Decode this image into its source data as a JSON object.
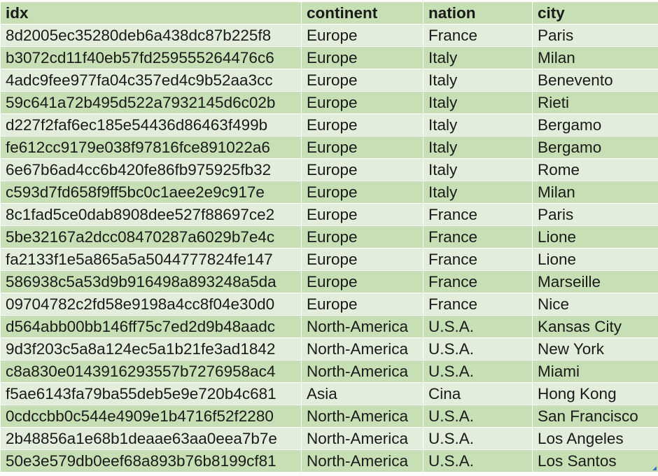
{
  "table": {
    "columns": [
      "idx",
      "continent",
      "nation",
      "city"
    ],
    "rows": [
      {
        "idx": "8d2005ec35280deb6a438dc87b225f8",
        "continent": "Europe",
        "nation": "France",
        "city": "Paris"
      },
      {
        "idx": "b3072cd11f40eb57fd259555264476c6",
        "continent": "Europe",
        "nation": "Italy",
        "city": "Milan"
      },
      {
        "idx": "4adc9fee977fa04c357ed4c9b52aa3cc",
        "continent": "Europe",
        "nation": "Italy",
        "city": "Benevento"
      },
      {
        "idx": "59c641a72b495d522a7932145d6c02b",
        "continent": "Europe",
        "nation": "Italy",
        "city": "Rieti"
      },
      {
        "idx": "d227f2faf6ec185e54436d86463f499b",
        "continent": "Europe",
        "nation": "Italy",
        "city": "Bergamo"
      },
      {
        "idx": "fe612cc9179e038f97816fce891022a6",
        "continent": "Europe",
        "nation": "Italy",
        "city": "Bergamo"
      },
      {
        "idx": "6e67b6ad4cc6b420fe86fb975925fb32",
        "continent": "Europe",
        "nation": "Italy",
        "city": "Rome"
      },
      {
        "idx": "c593d7fd658f9ff5bc0c1aee2e9c917e",
        "continent": "Europe",
        "nation": "Italy",
        "city": "Milan"
      },
      {
        "idx": "8c1fad5ce0dab8908dee527f88697ce2",
        "continent": "Europe",
        "nation": "France",
        "city": "Paris"
      },
      {
        "idx": "5be32167a2dcc08470287a6029b7e4c",
        "continent": "Europe",
        "nation": "France",
        "city": "Lione"
      },
      {
        "idx": "fa2133f1e5a865a5a5044777824fe147",
        "continent": "Europe",
        "nation": "France",
        "city": "Lione"
      },
      {
        "idx": "586938c5a53d9b916498a893248a5da",
        "continent": "Europe",
        "nation": "France",
        "city": "Marseille"
      },
      {
        "idx": "09704782c2fd58e9198a4cc8f04e30d0",
        "continent": "Europe",
        "nation": "France",
        "city": "Nice"
      },
      {
        "idx": "d564abb00bb146ff75c7ed2d9b48aadc",
        "continent": "North-America",
        "nation": "U.S.A.",
        "city": "Kansas City"
      },
      {
        "idx": "9d3f203c5a8a124ec5a1b21fe3ad1842",
        "continent": "North-America",
        "nation": "U.S.A.",
        "city": "New York"
      },
      {
        "idx": "c8a830e0143916293557b7276958ac4",
        "continent": "North-America",
        "nation": "U.S.A.",
        "city": "Miami"
      },
      {
        "idx": "f5ae6143fa79ba55deb5e9e720b4c681",
        "continent": "Asia",
        "nation": "Cina",
        "city": "Hong Kong"
      },
      {
        "idx": "0cdccbb0c544e4909e1b4716f52f2280",
        "continent": "North-America",
        "nation": "U.S.A.",
        "city": "San Francisco"
      },
      {
        "idx": "2b48856a1e68b1deaae63aa0eea7b7e",
        "continent": "North-America",
        "nation": "U.S.A.",
        "city": "Los Angeles"
      },
      {
        "idx": "50e3e579db0eef68a893b76b8199cf81",
        "continent": "North-America",
        "nation": "U.S.A.",
        "city": "Los Santos"
      }
    ]
  },
  "colors": {
    "header_band": "#c6dfb4",
    "row_light": "#e2eedb",
    "row_dark": "#c6dfb4",
    "resize_handle": "#3b6fb6"
  },
  "icons": {
    "resize_handle": "resize-handle-icon"
  }
}
